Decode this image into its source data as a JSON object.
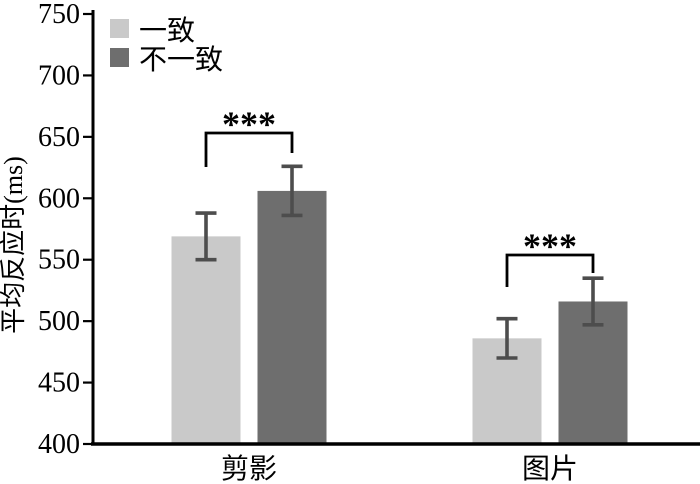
{
  "chart_data": {
    "type": "bar",
    "title": "",
    "xlabel": "",
    "ylabel": "平均反应时(ms)",
    "categories": [
      "剪影",
      "图片"
    ],
    "series": [
      {
        "name": "一致",
        "color": "#c9c9c9",
        "values": [
          569,
          486
        ],
        "errors": [
          19,
          16
        ]
      },
      {
        "name": "不一致",
        "color": "#6e6e6e",
        "values": [
          606,
          516
        ],
        "errors": [
          20,
          19
        ]
      }
    ],
    "ylim": [
      400,
      750
    ],
    "yticks": [
      400,
      450,
      500,
      550,
      600,
      650,
      700,
      750
    ],
    "significance": [
      {
        "category": "剪影",
        "between": [
          "一致",
          "不一致"
        ],
        "label": "***"
      },
      {
        "category": "图片",
        "between": [
          "一致",
          "不一致"
        ],
        "label": "***"
      }
    ],
    "legend_position": "top-left",
    "grid": false,
    "colors": {
      "axis": "#000000",
      "error_bar": "#4d4d4d",
      "significance": "#000000",
      "background": "#ffffff"
    }
  }
}
